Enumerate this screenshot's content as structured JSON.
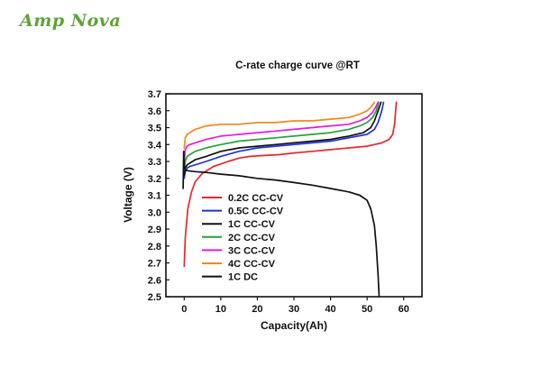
{
  "brand": {
    "name": "Amp Nova",
    "color": "#5fa336"
  },
  "chart_data": {
    "type": "line",
    "title": "C-rate charge curve @RT",
    "xlabel": "Capacity(Ah)",
    "ylabel": "Voltage (V)",
    "xlim": [
      -5,
      65
    ],
    "ylim": [
      2.5,
      3.7
    ],
    "xticks": [
      0,
      10,
      20,
      30,
      40,
      50,
      60
    ],
    "yticks": [
      2.5,
      2.6,
      2.7,
      2.8,
      2.9,
      3.0,
      3.1,
      3.2,
      3.3,
      3.4,
      3.5,
      3.6,
      3.7
    ],
    "xtick_labels": [
      "0",
      "10",
      "20",
      "30",
      "40",
      "50",
      "60"
    ],
    "ytick_labels": [
      "2.5",
      "2.6",
      "2.7",
      "2.8",
      "2.9",
      "3.0",
      "3.1",
      "3.2",
      "3.3",
      "3.4",
      "3.5",
      "3.6",
      "3.7"
    ],
    "grid": false,
    "legend_position": "lower-left",
    "series": [
      {
        "name": "0.2C CC-CV",
        "color": "#e8262b",
        "x": [
          0,
          0.3,
          1,
          2,
          3,
          5,
          8,
          12,
          15,
          18,
          22,
          26,
          30,
          35,
          40,
          45,
          50,
          54,
          56,
          57,
          57.5,
          57.8,
          58
        ],
        "y": [
          2.68,
          2.85,
          3.02,
          3.12,
          3.18,
          3.23,
          3.27,
          3.3,
          3.32,
          3.33,
          3.335,
          3.34,
          3.35,
          3.36,
          3.37,
          3.38,
          3.39,
          3.41,
          3.43,
          3.46,
          3.52,
          3.6,
          3.65
        ]
      },
      {
        "name": "0.5C CC-CV",
        "color": "#1f33e0",
        "x": [
          0,
          0.3,
          0.8,
          1.5,
          3,
          6,
          10,
          15,
          20,
          25,
          30,
          35,
          40,
          45,
          50,
          52,
          53,
          54,
          54.5
        ],
        "y": [
          3.2,
          3.24,
          3.26,
          3.27,
          3.28,
          3.3,
          3.33,
          3.36,
          3.38,
          3.39,
          3.4,
          3.41,
          3.42,
          3.44,
          3.46,
          3.49,
          3.53,
          3.6,
          3.65
        ]
      },
      {
        "name": "1C CC-CV",
        "color": "#111111",
        "x": [
          0,
          0.3,
          0.8,
          1.5,
          3,
          6,
          10,
          15,
          20,
          25,
          30,
          35,
          40,
          45,
          49,
          51,
          52,
          53,
          53.8
        ],
        "y": [
          3.22,
          3.26,
          3.28,
          3.29,
          3.31,
          3.33,
          3.36,
          3.38,
          3.39,
          3.4,
          3.41,
          3.42,
          3.43,
          3.45,
          3.47,
          3.5,
          3.54,
          3.6,
          3.65
        ]
      },
      {
        "name": "2C CC-CV",
        "color": "#27a23a",
        "x": [
          0,
          0.3,
          0.8,
          1.5,
          3,
          6,
          10,
          15,
          20,
          25,
          30,
          35,
          40,
          45,
          48,
          50,
          51.5,
          52.5,
          53.2
        ],
        "y": [
          3.25,
          3.3,
          3.33,
          3.34,
          3.36,
          3.38,
          3.4,
          3.42,
          3.43,
          3.44,
          3.45,
          3.46,
          3.47,
          3.49,
          3.51,
          3.53,
          3.56,
          3.6,
          3.65
        ]
      },
      {
        "name": "3C CC-CV",
        "color": "#e61bd9",
        "x": [
          0,
          0.3,
          0.8,
          1.5,
          3,
          6,
          10,
          15,
          20,
          25,
          30,
          35,
          40,
          45,
          48,
          50,
          51.5,
          52.3,
          53
        ],
        "y": [
          3.3,
          3.37,
          3.39,
          3.4,
          3.41,
          3.43,
          3.45,
          3.46,
          3.47,
          3.48,
          3.49,
          3.5,
          3.51,
          3.52,
          3.54,
          3.56,
          3.59,
          3.62,
          3.65
        ]
      },
      {
        "name": "4C CC-CV",
        "color": "#f08a1c",
        "x": [
          0,
          0.3,
          0.8,
          1.5,
          3,
          6,
          10,
          15,
          20,
          25,
          30,
          35,
          40,
          45,
          48,
          50,
          51,
          52
        ],
        "y": [
          3.38,
          3.44,
          3.46,
          3.47,
          3.49,
          3.51,
          3.52,
          3.52,
          3.53,
          3.53,
          3.54,
          3.54,
          3.55,
          3.56,
          3.58,
          3.6,
          3.62,
          3.65
        ]
      },
      {
        "name": "1C DC",
        "color": "#111111",
        "x": [
          -0.3,
          -0.15,
          0,
          0.3,
          1,
          3,
          6,
          10,
          15,
          20,
          25,
          30,
          35,
          40,
          45,
          48,
          50,
          51,
          52,
          52.5,
          53,
          53.3
        ],
        "y": [
          3.14,
          3.36,
          3.28,
          3.25,
          3.245,
          3.24,
          3.235,
          3.225,
          3.215,
          3.2,
          3.19,
          3.175,
          3.16,
          3.14,
          3.12,
          3.1,
          3.07,
          3.02,
          2.92,
          2.8,
          2.63,
          2.5
        ]
      }
    ]
  }
}
